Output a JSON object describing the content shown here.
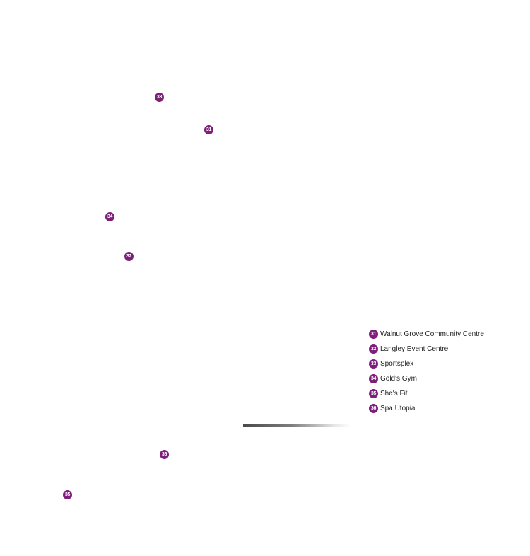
{
  "markers": [
    {
      "id": "marker-31",
      "number": "31"
    },
    {
      "id": "marker-32",
      "number": "32"
    },
    {
      "id": "marker-33",
      "number": "33"
    },
    {
      "id": "marker-34",
      "number": "34"
    },
    {
      "id": "marker-35",
      "number": "35"
    },
    {
      "id": "marker-36",
      "number": "36"
    }
  ],
  "legend": {
    "items": [
      {
        "number": "31",
        "label": "Walnut Grove Community Centre"
      },
      {
        "number": "32",
        "label": "Langley Event Centre"
      },
      {
        "number": "33",
        "label": "Sportsplex"
      },
      {
        "number": "34",
        "label": "Gold's Gym"
      },
      {
        "number": "35",
        "label": "She's Fit"
      },
      {
        "number": "36",
        "label": "Spa Utopia"
      }
    ]
  },
  "colors": {
    "marker": "#7e1f7a",
    "marker_text": "#ffffff",
    "legend_text": "#222222"
  }
}
